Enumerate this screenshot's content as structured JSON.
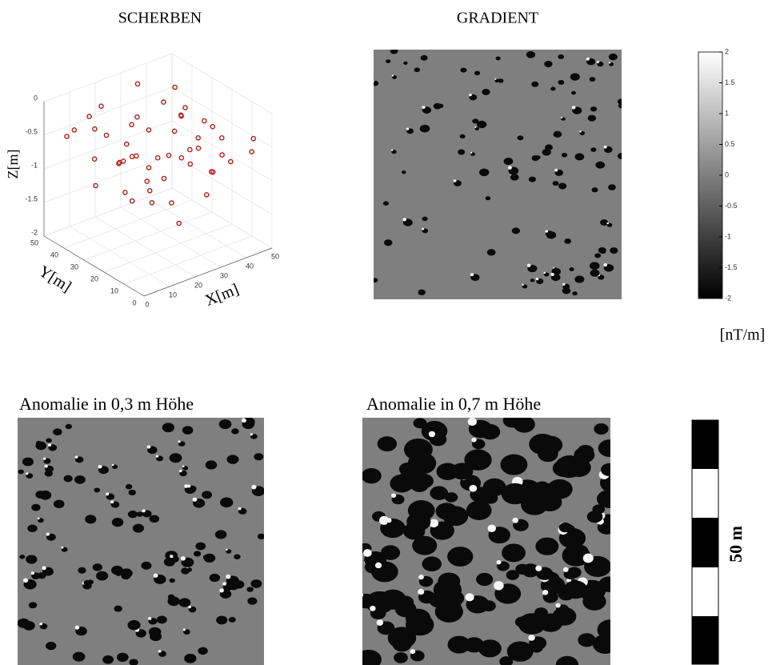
{
  "chart_data": [
    {
      "type": "scatter3d",
      "title": "SCHERBEN",
      "xlabel": "X[m]",
      "ylabel": "Y[m]",
      "zlabel": "Z[m]",
      "xlim": [
        0,
        50
      ],
      "ylim": [
        0,
        50
      ],
      "zlim": [
        -2,
        0
      ],
      "xticks": [
        0,
        10,
        20,
        30,
        40,
        50
      ],
      "yticks": [
        0,
        10,
        20,
        30,
        40,
        50
      ],
      "zticks": [
        -2,
        -1.5,
        -1,
        -0.5,
        0
      ],
      "color": "#b01e12",
      "grid": true,
      "x": [
        5,
        12,
        20,
        28,
        35,
        42,
        48,
        8,
        15,
        22,
        30,
        38,
        45,
        3,
        10,
        18,
        25,
        33,
        40,
        47,
        6,
        14,
        21,
        29,
        36,
        43,
        9,
        17,
        24,
        31,
        39,
        46,
        4,
        11,
        19,
        27,
        34,
        41,
        2,
        13,
        23,
        32,
        44,
        7,
        16,
        26,
        37,
        49,
        12,
        30
      ],
      "y": [
        45,
        40,
        47,
        42,
        48,
        44,
        46,
        35,
        38,
        32,
        36,
        30,
        37,
        28,
        25,
        29,
        22,
        27,
        24,
        30,
        18,
        15,
        20,
        14,
        19,
        16,
        10,
        8,
        12,
        6,
        11,
        5,
        40,
        20,
        33,
        38,
        9,
        34,
        12,
        44,
        27,
        18,
        22,
        5,
        3,
        2,
        4,
        8,
        28,
        26
      ],
      "z": [
        -0.5,
        -0.4,
        -0.3,
        -0.6,
        -0.2,
        -0.5,
        -0.4,
        -0.7,
        -0.5,
        -0.8,
        -0.6,
        -0.4,
        -0.5,
        -0.9,
        -0.6,
        -0.7,
        -1.0,
        -0.5,
        -0.8,
        -0.6,
        -0.4,
        -0.9,
        -0.6,
        -0.7,
        -0.5,
        -0.8,
        -0.6,
        -1.0,
        -0.5,
        -0.7,
        -0.4,
        -0.6,
        -0.3,
        -1.1,
        -0.6,
        -0.4,
        -0.8,
        -0.5,
        -0.7,
        -0.3,
        -0.9,
        -0.6,
        -0.5,
        -0.8,
        -1.2,
        -0.9,
        -0.6,
        -0.5,
        -0.7,
        -0.8
      ]
    },
    {
      "type": "heatmap",
      "title": "GRADIENT",
      "clim": [
        -2,
        2
      ],
      "cticks": [
        -2,
        -1.5,
        -1,
        -0.5,
        0,
        0.5,
        1,
        1.5,
        2
      ],
      "unit": "[nT/m]"
    },
    {
      "type": "heatmap",
      "title": "Anomalie in 0,3 m Höhe"
    },
    {
      "type": "heatmap",
      "title": "Anomalie in 0,7 m Höhe"
    }
  ],
  "scale_bar": {
    "label": "50 m"
  }
}
